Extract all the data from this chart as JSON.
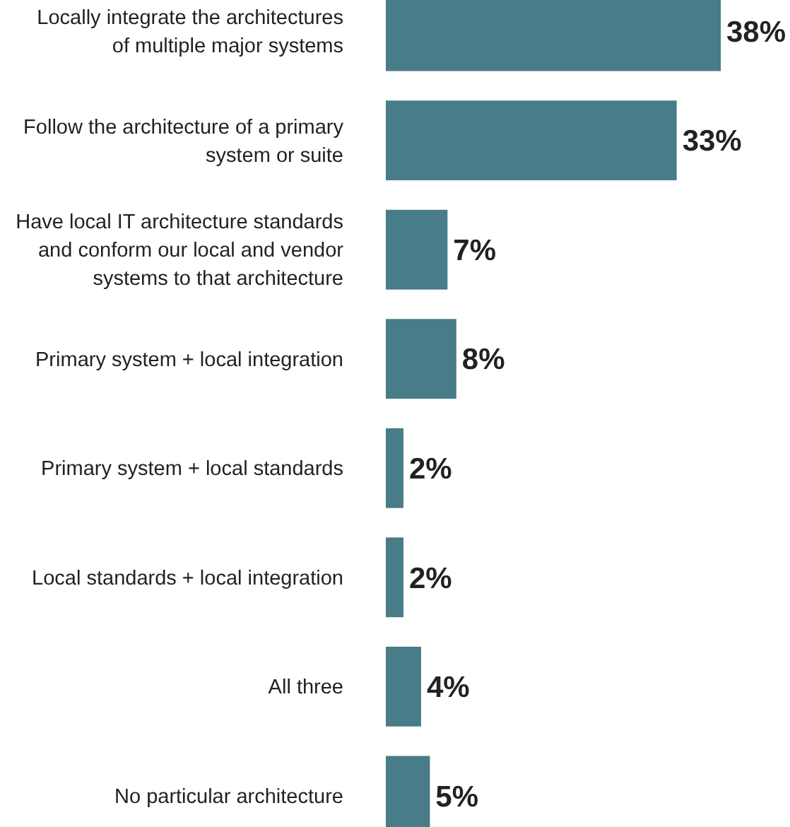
{
  "chart_data": {
    "type": "bar",
    "orientation": "horizontal",
    "categories": [
      "Locally integrate the architectures of multiple major systems",
      "Follow the architecture of a primary system or suite",
      "Have local IT architecture standards and conform our local and vendor systems to that architecture",
      "Primary system + local integration",
      "Primary system + local standards",
      "Local standards + local integration",
      "All three",
      "No particular architecture"
    ],
    "values": [
      38,
      33,
      7,
      8,
      2,
      2,
      4,
      5
    ],
    "value_labels": [
      "38%",
      "33%",
      "7%",
      "8%",
      "2%",
      "2%",
      "4%",
      "5%"
    ],
    "color": "#477c88"
  }
}
